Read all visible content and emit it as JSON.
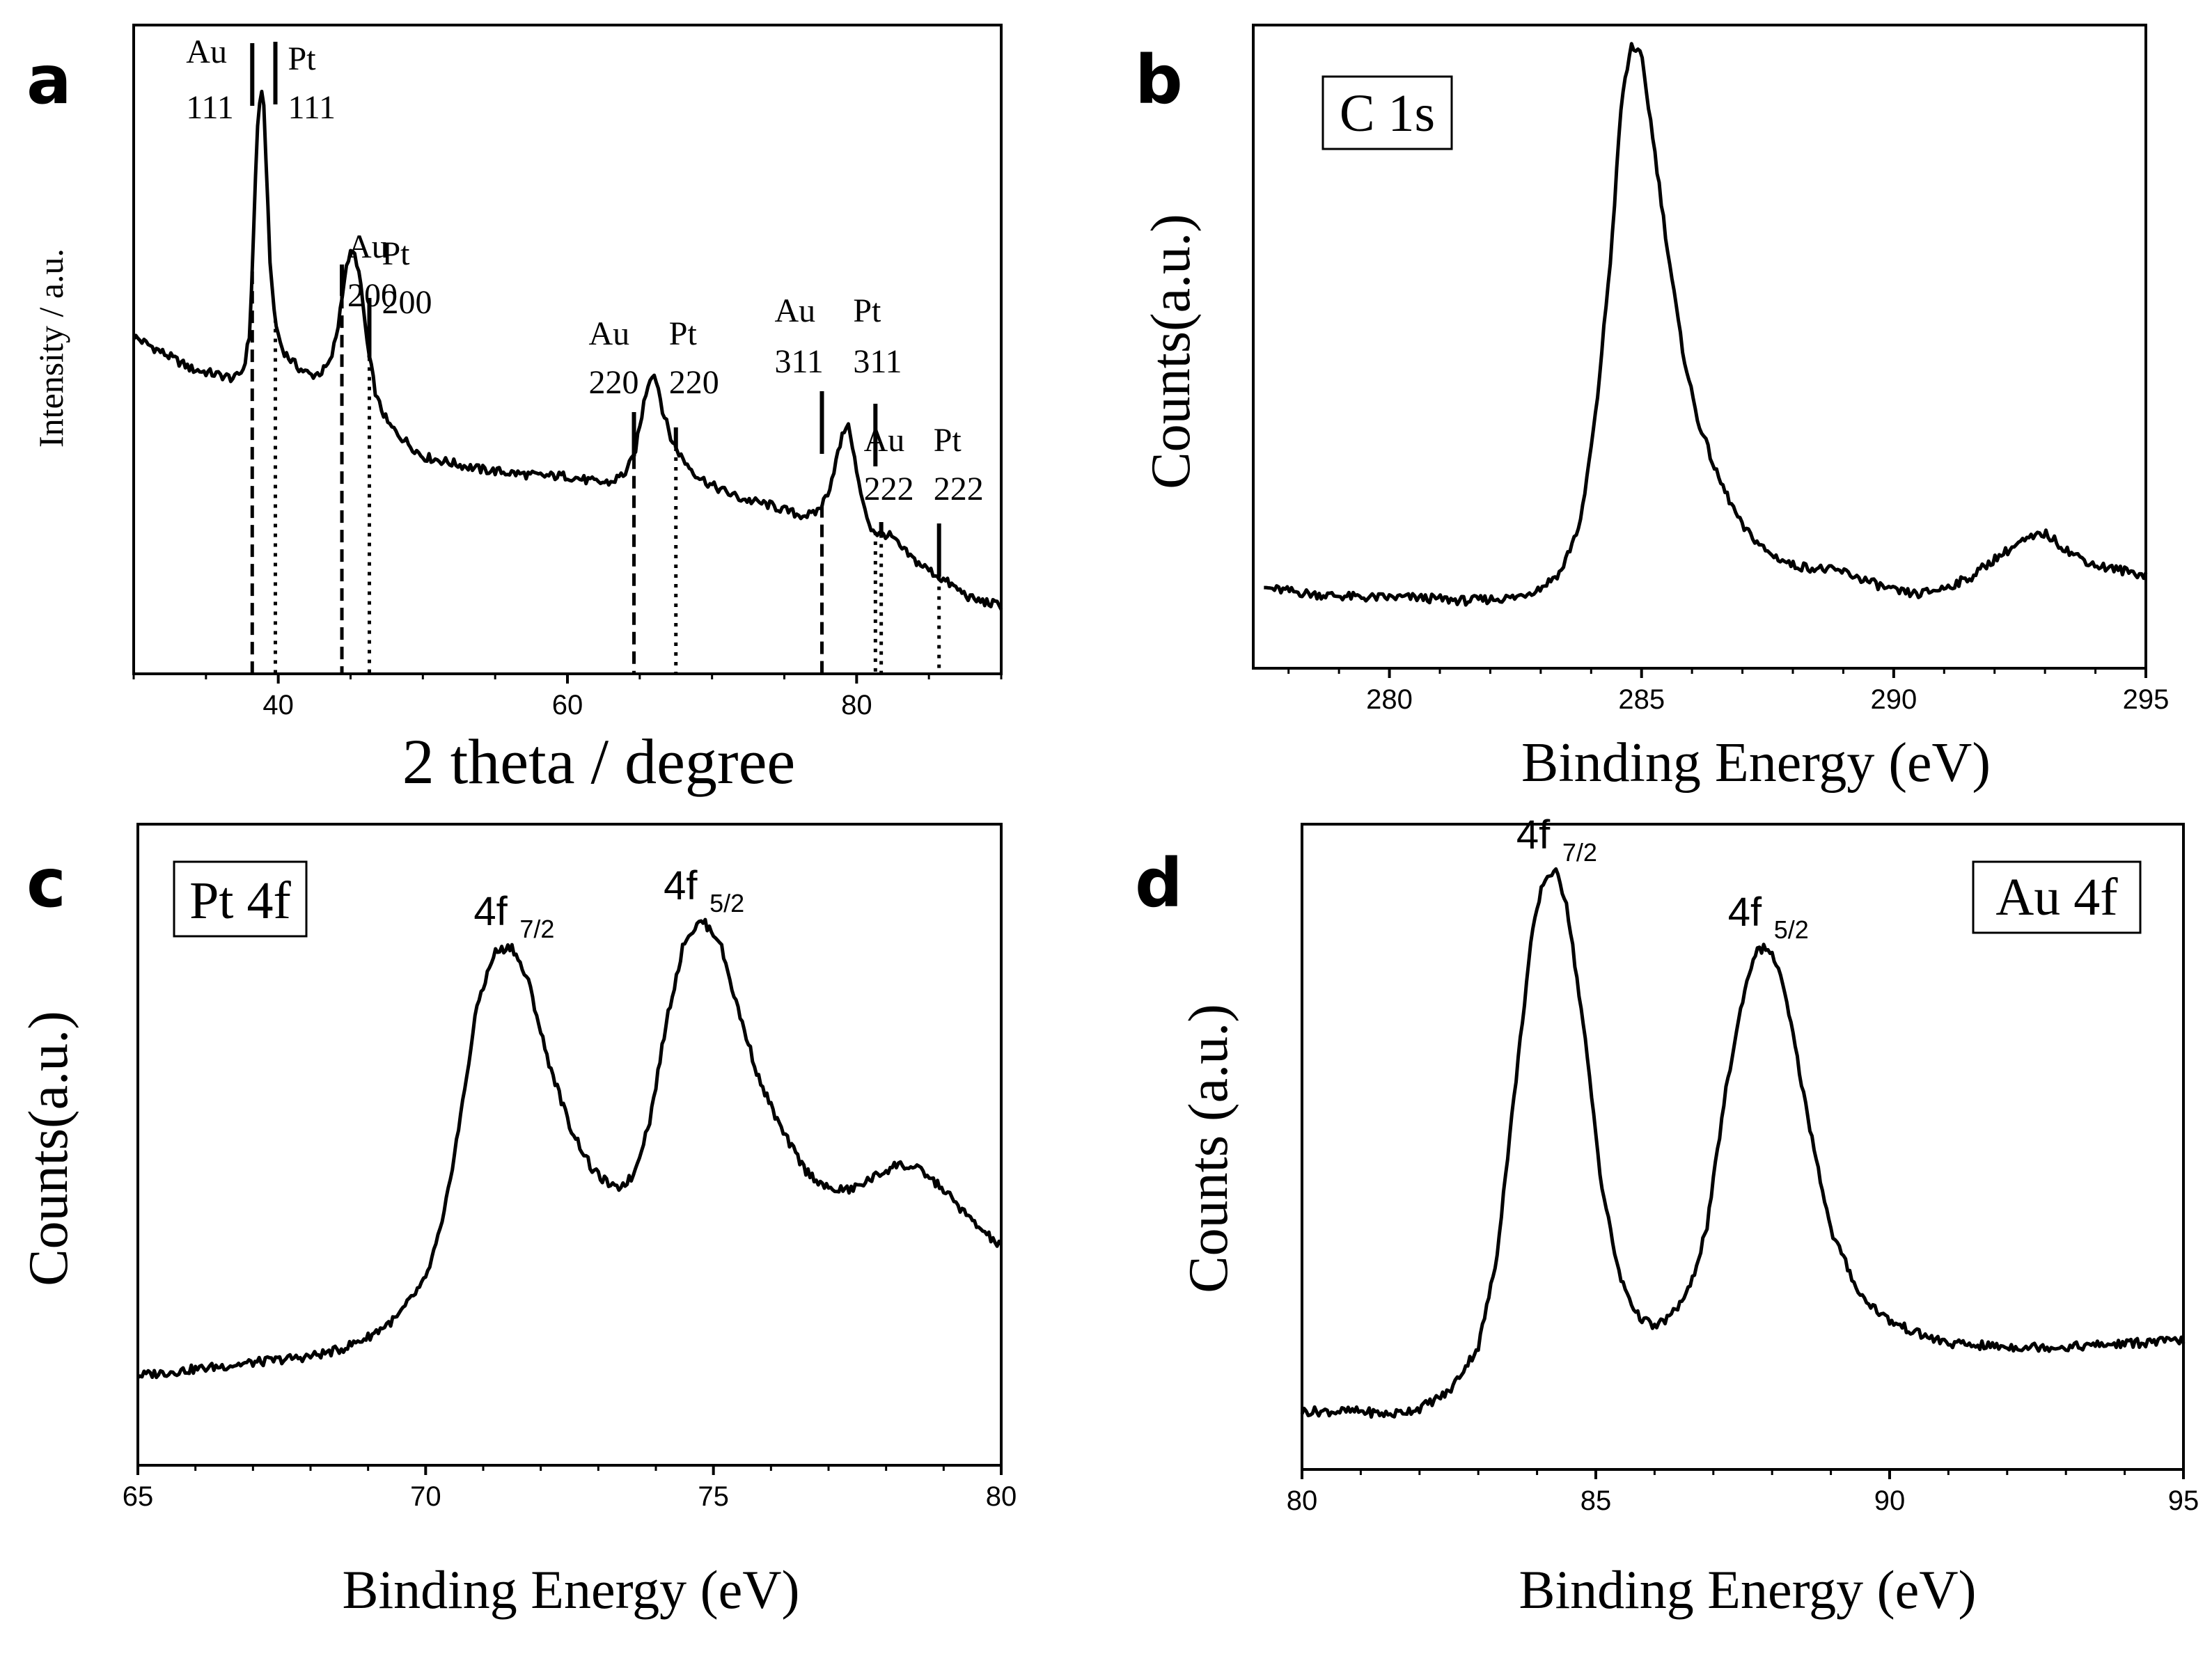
{
  "chart_data": [
    {
      "id": "a",
      "type": "line",
      "panel_label": "a",
      "xlabel": "2 theta / degree",
      "ylabel": "Intensity / a.u.",
      "xlim": [
        30,
        90
      ],
      "ylim": [
        0,
        100
      ],
      "xticks": [
        40,
        60,
        80
      ],
      "x": [
        30,
        32,
        34,
        36,
        37,
        37.6,
        38,
        38.2,
        38.4,
        38.6,
        38.8,
        39,
        39.2,
        39.4,
        39.6,
        39.9,
        40.3,
        40.8,
        41.5,
        42.3,
        43,
        43.6,
        44.1,
        44.5,
        44.9,
        45.2,
        45.5,
        45.8,
        46.2,
        46.8,
        47.6,
        48.5,
        50,
        52,
        54,
        56,
        58,
        60,
        62,
        63,
        64,
        64.6,
        65,
        65.3,
        65.6,
        65.9,
        66.2,
        66.6,
        67.2,
        68,
        69,
        70,
        72,
        74,
        76,
        77,
        77.6,
        78.1,
        78.6,
        79,
        79.3,
        79.6,
        80,
        80.5,
        81,
        81.5,
        82,
        82.5,
        83,
        84,
        85,
        86,
        88,
        90
      ],
      "y": [
        52,
        49.5,
        47,
        46,
        45.5,
        47,
        52,
        62,
        75,
        86,
        90,
        87,
        77,
        65,
        58,
        53,
        50,
        48.5,
        47,
        46,
        46.5,
        48,
        53,
        60,
        64.5,
        65,
        63,
        58,
        50,
        42.5,
        38.5,
        36.5,
        33.5,
        32.5,
        31.5,
        31,
        30.5,
        30.5,
        29.5,
        29.5,
        31,
        33.5,
        38,
        42,
        45,
        46.5,
        45,
        40.5,
        36,
        33,
        30.5,
        29,
        27,
        26,
        24.5,
        24.5,
        26,
        28.5,
        33,
        36.5,
        38.5,
        37,
        31,
        25.5,
        22.5,
        21.5,
        21.5,
        21,
        19.5,
        17.5,
        16,
        14.5,
        11.5,
        10.5
      ],
      "annotations": [
        {
          "name": "Au",
          "hkl": "111",
          "x": 38.2,
          "line": "dashed"
        },
        {
          "name": "Pt",
          "hkl": "111",
          "x": 39.8,
          "line": "dotted"
        },
        {
          "name": "Au",
          "hkl": "200",
          "x": 44.4,
          "line": "dashed"
        },
        {
          "name": "Pt",
          "hkl": "200",
          "x": 46.3,
          "line": "dotted"
        },
        {
          "name": "Au",
          "hkl": "220",
          "x": 64.6,
          "line": "dashed"
        },
        {
          "name": "Pt",
          "hkl": "220",
          "x": 67.5,
          "line": "dotted"
        },
        {
          "name": "Au",
          "hkl": "311",
          "x": 77.6,
          "line": "dashed"
        },
        {
          "name": "Pt",
          "hkl": "311",
          "x": 81.3,
          "line": "dotted"
        },
        {
          "name": "Au",
          "hkl": "222",
          "x": 81.7,
          "line": "dotted"
        },
        {
          "name": "Pt",
          "hkl": "222",
          "x": 85.7,
          "line": "dotted"
        }
      ]
    },
    {
      "id": "b",
      "type": "line",
      "panel_label": "b",
      "box_label": "C 1s",
      "xlabel": "Binding Energy (eV)",
      "ylabel": "Counts(a.u.)",
      "xlim": [
        277.3,
        295
      ],
      "ylim": [
        0,
        100
      ],
      "xticks": [
        280,
        285,
        290,
        295
      ],
      "x": [
        277.5,
        278.5,
        279.5,
        280.5,
        281.5,
        282.5,
        283,
        283.4,
        283.8,
        284.1,
        284.4,
        284.6,
        284.8,
        285,
        285.2,
        285.5,
        285.8,
        286.1,
        286.5,
        287,
        287.5,
        288,
        289,
        290,
        290.5,
        291,
        291.5,
        292,
        292.5,
        293,
        293.5,
        294,
        295
      ],
      "y": [
        12.5,
        11.5,
        11,
        11,
        10.5,
        11,
        12.5,
        15,
        23,
        40,
        65,
        88,
        97,
        95,
        84,
        66,
        50,
        39,
        30,
        22,
        18,
        16,
        15,
        12,
        11.5,
        12.5,
        14,
        17,
        19.5,
        21,
        18,
        16,
        14.5
      ],
      "annotations": []
    },
    {
      "id": "c",
      "type": "line",
      "panel_label": "c",
      "box_label": "Pt 4f",
      "xlabel": "Binding Energy (eV)",
      "ylabel": "Counts(a.u.)",
      "xlim": [
        65,
        80
      ],
      "ylim": [
        0,
        100
      ],
      "xticks": [
        65,
        70,
        75,
        80
      ],
      "x": [
        65,
        66,
        67,
        68,
        68.5,
        69,
        69.5,
        70,
        70.3,
        70.6,
        70.9,
        71.2,
        71.5,
        71.8,
        72.1,
        72.5,
        72.9,
        73.3,
        73.6,
        73.9,
        74.2,
        74.5,
        74.8,
        75.1,
        75.4,
        75.8,
        76.2,
        76.6,
        77,
        77.4,
        77.8,
        78.2,
        78.6,
        79,
        79.5,
        80
      ],
      "y": [
        14,
        15,
        16,
        17,
        18,
        20,
        23,
        29,
        38,
        54,
        72,
        80,
        81,
        75,
        64,
        53,
        46,
        43,
        45,
        54,
        70,
        82,
        85,
        82,
        72,
        60,
        52,
        46,
        43,
        43,
        45,
        47,
        46,
        43,
        38,
        34
      ],
      "peaks": [
        {
          "label": "4f",
          "sub": "7/2",
          "x": 71.5
        },
        {
          "label": "4f",
          "sub": "5/2",
          "x": 74.8
        }
      ],
      "annotations": []
    },
    {
      "id": "d",
      "type": "line",
      "panel_label": "d",
      "box_label": "Au 4f",
      "xlabel": "Binding Energy (eV)",
      "ylabel": "Counts (a.u.)",
      "xlim": [
        80,
        95
      ],
      "ylim": [
        0,
        100
      ],
      "xticks": [
        80,
        85,
        90,
        95
      ],
      "x": [
        80,
        81,
        81.5,
        82,
        82.5,
        83,
        83.3,
        83.6,
        83.9,
        84.1,
        84.3,
        84.5,
        84.8,
        85.1,
        85.4,
        85.7,
        86,
        86.3,
        86.6,
        86.9,
        87.2,
        87.5,
        87.7,
        87.9,
        88.1,
        88.3,
        88.6,
        89,
        89.5,
        90,
        90.5,
        91,
        92,
        93,
        94,
        95
      ],
      "y": [
        9,
        9,
        8.5,
        9.5,
        12,
        19,
        32,
        57,
        82,
        91,
        93,
        88,
        68,
        44,
        30,
        24,
        22,
        24,
        28,
        38,
        58,
        73,
        80,
        81,
        78,
        70,
        55,
        37,
        27,
        23,
        21,
        19.5,
        19,
        19,
        19.5,
        20
      ],
      "peaks": [
        {
          "label": "4f",
          "sub": "7/2",
          "x": 84.3
        },
        {
          "label": "4f",
          "sub": "5/2",
          "x": 87.9
        }
      ],
      "annotations": []
    }
  ]
}
